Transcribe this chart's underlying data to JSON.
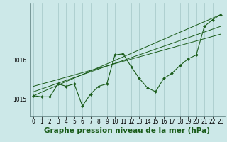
{
  "bg_color": "#cce8e8",
  "grid_color": "#aacccc",
  "line_color": "#1a5c1a",
  "marker_color": "#1a5c1a",
  "title": "Graphe pression niveau de la mer (hPa)",
  "title_fontsize": 7.5,
  "tick_fontsize": 5.5,
  "xlim": [
    -0.5,
    23.5
  ],
  "ylim": [
    1014.55,
    1017.45
  ],
  "yticks": [
    1015,
    1016
  ],
  "xticks": [
    0,
    1,
    2,
    3,
    4,
    5,
    6,
    7,
    8,
    9,
    10,
    11,
    12,
    13,
    14,
    15,
    16,
    17,
    18,
    19,
    20,
    21,
    22,
    23
  ],
  "main_line_x": [
    0,
    1,
    2,
    3,
    4,
    5,
    6,
    7,
    8,
    9,
    10,
    11,
    12,
    13,
    14,
    15,
    16,
    17,
    18,
    19,
    20,
    21,
    22,
    23
  ],
  "main_line_y": [
    1015.08,
    1015.05,
    1015.05,
    1015.38,
    1015.32,
    1015.38,
    1014.82,
    1015.12,
    1015.32,
    1015.38,
    1016.12,
    1016.15,
    1015.82,
    1015.52,
    1015.28,
    1015.18,
    1015.52,
    1015.65,
    1015.85,
    1016.02,
    1016.12,
    1016.85,
    1017.02,
    1017.15
  ],
  "line2_x": [
    0,
    23
  ],
  "line2_y": [
    1015.08,
    1017.15
  ],
  "line3_x": [
    0,
    23
  ],
  "line3_y": [
    1015.18,
    1016.85
  ],
  "line4_x": [
    0,
    23
  ],
  "line4_y": [
    1015.32,
    1016.65
  ]
}
